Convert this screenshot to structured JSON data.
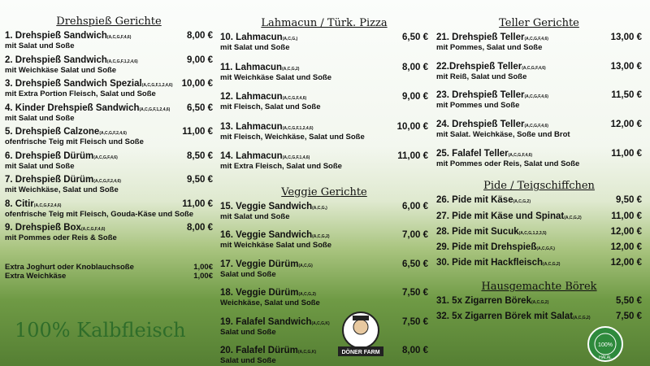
{
  "columns": [
    {
      "sections": [
        {
          "title": "Drehspieß Gerichte",
          "items": [
            {
              "name": "1. Drehspieß Sandwich",
              "allergens": "(A,C,G,F,4,6)",
              "price": "8,00 €",
              "desc": "mit Salat und Soße"
            },
            {
              "name": "2. Drehspieß Sandwich",
              "allergens": "(A,C,G,F,1,2,4,6)",
              "price": "9,00 €",
              "desc": "mit Weichkäse Salat und Soße"
            },
            {
              "name": "3. Drehspieß Sandwich Spezial",
              "allergens": "(A,C,G,F,1,2,4,6)",
              "price": "10,00 €",
              "desc": "mit Extra Portion Fleisch, Salat und Soße"
            },
            {
              "name": "4. Kinder Drehspieß Sandwich",
              "allergens": "(A,C,G,F,1,2,4,6)",
              "price": "6,50 €",
              "desc": "mit Salat und Soße"
            },
            {
              "name": "5. Drehspieß Calzone",
              "allergens": "(A,C,G,F,2,4,6)",
              "price": "11,00 €",
              "desc": "ofenfrische Teig mit Fleisch und Soße"
            },
            {
              "name": "6. Drehspieß Dürüm",
              "allergens": "(A,C,G,F,4,6)",
              "price": "8,50 €",
              "desc": "mit Salat und Soße"
            },
            {
              "name": "7. Drehspieß Dürüm",
              "allergens": "(A,C,G,F,2,4,6)",
              "price": "9,50 €",
              "desc": "mit Weichkäse, Salat und Soße"
            },
            {
              "name": "8. Citir",
              "allergens": "(A,C,G,F,2,4,6)",
              "price": "11,00 €",
              "desc": "ofenfrische Teig mit Fleisch, Gouda-Käse und Soße"
            },
            {
              "name": "9. Drehspieß Box",
              "allergens": "(A,C,G,F,4,6)",
              "price": "8,00 €",
              "desc": "mit Pommes oder Reis & Soße"
            }
          ]
        }
      ]
    },
    {
      "sections": [
        {
          "title": "Lahmacun / Türk. Pizza",
          "items": [
            {
              "name": "10. Lahmacun",
              "allergens": "(A,C,G,)",
              "price": "6,50 €",
              "desc": "mit Salat und Soße"
            },
            {
              "name": "11. Lahmacun",
              "allergens": "(A,C,G,2)",
              "price": "8,00 €",
              "desc": "mit Weichkäse Salat und Soße"
            },
            {
              "name": "12. Lahmacun",
              "allergens": "(A,C,G,F,4,6)",
              "price": "9,00 €",
              "desc": "mit Fleisch, Salat und Soße"
            },
            {
              "name": "13. Lahmacun",
              "allergens": "(A,C,G,F,1,2,4,6)",
              "price": "10,00 €",
              "desc": "mit Fleisch, Weichkäse, Salat und Soße"
            },
            {
              "name": "14. Lahmacun",
              "allergens": "(A,C,G,F,1,4,6)",
              "price": "11,00 €",
              "desc": "mit Extra Fleisch, Salat und Soße"
            }
          ]
        },
        {
          "title": "Veggie Gerichte",
          "items": [
            {
              "name": "15. Veggie Sandwich",
              "allergens": "(A,C,G,)",
              "price": "6,00 €",
              "desc": "mit Salat und Soße"
            },
            {
              "name": "16. Veggie Sandwich",
              "allergens": "(A,C,G,2)",
              "price": "7,00 €",
              "desc": "mit Weichkäse Salat und Soße"
            },
            {
              "name": "17. Veggie Dürüm",
              "allergens": "(A,C,G)",
              "price": "6,50 €",
              "desc": "Salat und Soße"
            },
            {
              "name": "18. Veggie Dürüm",
              "allergens": "(A,C,G,2)",
              "price": "7,50 €",
              "desc": "Weichkäse, Salat und Soße"
            },
            {
              "name": "19. Falafel Sandwich",
              "allergens": "(A,C,G,K)",
              "price": "7,50 €",
              "desc": "Salat und Soße"
            },
            {
              "name": "20. Falafel Dürüm",
              "allergens": "(A,C,G,K)",
              "price": "8,00 €",
              "desc": "Salat und Soße"
            }
          ]
        }
      ]
    },
    {
      "sections": [
        {
          "title": "Teller Gerichte",
          "items": [
            {
              "name": "21. Drehspieß Teller",
              "allergens": "(A,C,G,F,4,6)",
              "price": "13,00 €",
              "desc": "mit Pommes, Salat und Soße"
            },
            {
              "name": "22.Drehspieß Teller",
              "allergens": "(A,C,G,F,4,6)",
              "price": "13,00 €",
              "desc": "mit Reiß, Salat und Soße"
            },
            {
              "name": "23. Drehspieß Teller",
              "allergens": "(A,C,G,F,4,6)",
              "price": "11,50 €",
              "desc": "mit Pommes und Soße"
            },
            {
              "name": "24. Drehspieß Teller",
              "allergens": "(A,C,G,F,4,6)",
              "price": "12,00 €",
              "desc": "mit Salat. Weichkäse, Soße und Brot"
            },
            {
              "name": "25. Falafel Teller",
              "allergens": "(A,C,G,F,4,6)",
              "price": "11,00 €",
              "desc": "mit Pommes oder Reis, Salat und Soße"
            }
          ]
        },
        {
          "title": "Pide / Teigschiffchen",
          "items": [
            {
              "name": "26. Pide mit Käse",
              "allergens": "(A,C,G,2)",
              "price": "9,50 €"
            },
            {
              "name": "27. Pide mit Käse und Spinat",
              "allergens": "(A,C,G,2)",
              "price": "11,00 €"
            },
            {
              "name": "28. Pide mit Sucuk",
              "allergens": "(A,C,G,1,2,3,5)",
              "price": "12,00 €"
            },
            {
              "name": "29. Pide mit Drehspieß",
              "allergens": "(A,C,G,F,)",
              "price": "12,00 €"
            },
            {
              "name": "30. Pide mit Hackfleisch",
              "allergens": "(A,C,G,2)",
              "price": "12,00 €"
            }
          ]
        },
        {
          "title": "Hausgemachte Börek",
          "items": [
            {
              "name": "31. 5x Zigarren Börek",
              "allergens": "(A,C,G,2)",
              "price": "5,50 €"
            },
            {
              "name": "32. 5x Zigarren Börek mit Salat",
              "allergens": "(A,C,G,2)",
              "price": "7,50 €"
            }
          ]
        }
      ]
    }
  ],
  "extras": [
    {
      "name": "Extra Joghurt oder Knoblauchsoße",
      "price": "1,00€"
    },
    {
      "name": "Extra Weichkäse",
      "price": "1,00€"
    }
  ],
  "slogan": "100% Kalbfleisch",
  "logo": "DÖNER FARM",
  "badge": {
    "top": "100%",
    "bottom": "HALAL"
  }
}
